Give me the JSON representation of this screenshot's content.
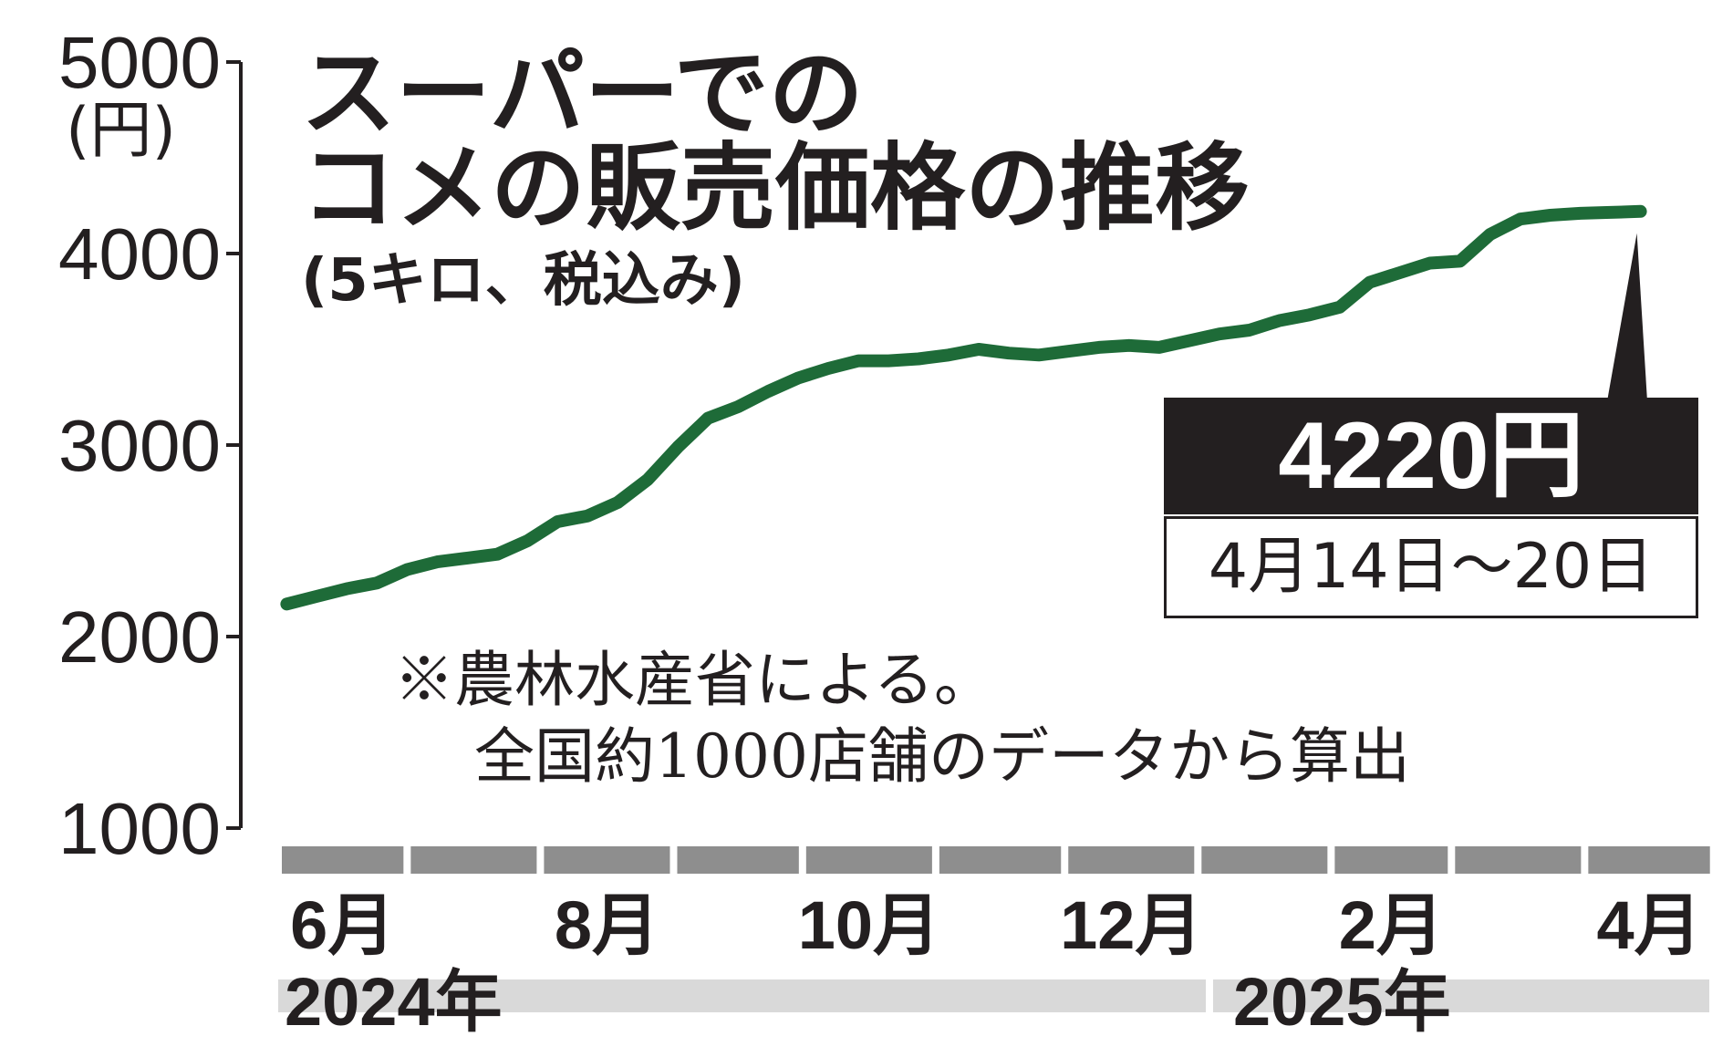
{
  "title_line1": "スーパーでの",
  "title_line2": "コメの販売価格の推移",
  "subtitle": "(5キロ、税込み)",
  "y_unit": "(円)",
  "note_line1": "※農林水産省による。",
  "note_line2": "全国約1000店舗のデータから算出",
  "callout": {
    "value": "4220円",
    "period": "4月14日〜20日"
  },
  "years": [
    "2024年",
    "2025年"
  ],
  "colors": {
    "line": "#1e6b38",
    "axis": "#231f20",
    "band": "#8e8e8e",
    "year_band": "#d9d9d9"
  },
  "chart_data": {
    "type": "line",
    "title": "スーパーでのコメの販売価格の推移",
    "ylabel": "(円)",
    "ylim": [
      1000,
      5000
    ],
    "yticks": [
      1000,
      2000,
      3000,
      4000,
      5000
    ],
    "ytick_labels": [
      "1000",
      "2000",
      "3000",
      "4000",
      "5000"
    ],
    "xtick_labels": [
      "6月",
      "8月",
      "10月",
      "12月",
      "2月",
      "4月"
    ],
    "grid": false,
    "x": [
      "2024-06-03",
      "2024-06-10",
      "2024-06-17",
      "2024-06-24",
      "2024-07-01",
      "2024-07-08",
      "2024-07-15",
      "2024-07-22",
      "2024-07-29",
      "2024-08-05",
      "2024-08-12",
      "2024-08-19",
      "2024-08-26",
      "2024-09-02",
      "2024-09-09",
      "2024-09-16",
      "2024-09-23",
      "2024-09-30",
      "2024-10-07",
      "2024-10-14",
      "2024-10-21",
      "2024-10-28",
      "2024-11-04",
      "2024-11-11",
      "2024-11-18",
      "2024-11-25",
      "2024-12-02",
      "2024-12-09",
      "2024-12-16",
      "2024-12-23",
      "2025-01-06",
      "2025-01-13",
      "2025-01-20",
      "2025-01-27",
      "2025-02-03",
      "2025-02-10",
      "2025-02-17",
      "2025-02-24",
      "2025-03-03",
      "2025-03-10",
      "2025-03-17",
      "2025-03-24",
      "2025-03-31",
      "2025-04-07",
      "2025-04-14"
    ],
    "series": [
      {
        "values": [
          2170,
          2210,
          2250,
          2280,
          2350,
          2390,
          2410,
          2430,
          2500,
          2600,
          2630,
          2700,
          2820,
          2990,
          3140,
          3200,
          3280,
          3350,
          3400,
          3440,
          3440,
          3450,
          3470,
          3500,
          3480,
          3470,
          3490,
          3510,
          3520,
          3510,
          3580,
          3600,
          3650,
          3680,
          3720,
          3850,
          3900,
          3950,
          3960,
          4100,
          4180,
          4200,
          4210,
          4215,
          4220
        ]
      }
    ],
    "annotations": [
      {
        "text": "4220円",
        "sub": "4月14日〜20日",
        "x": "2025-04-14",
        "y": 4220
      }
    ]
  }
}
